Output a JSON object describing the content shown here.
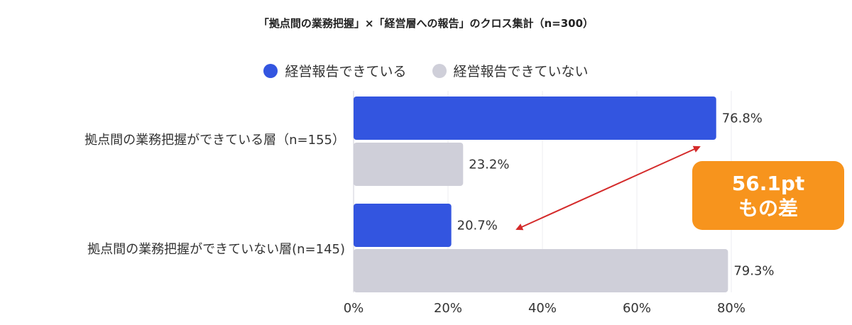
{
  "chart_data": {
    "type": "bar",
    "orientation": "horizontal",
    "title": "「拠点間の業務把握」×「経営層への報告」のクロス集計（n=300）",
    "categories": [
      "拠点間の業務把握ができている層（n=155）",
      "拠点間の業務把握ができていない層(n=145)"
    ],
    "series": [
      {
        "name": "経営報告できている",
        "color": "#3355e0",
        "values": [
          76.8,
          20.7
        ],
        "labels": [
          "76.8%",
          "20.7%"
        ]
      },
      {
        "name": "経営報告できていない",
        "color": "#cfcfd9",
        "values": [
          23.2,
          79.3
        ],
        "labels": [
          "23.2%",
          "79.3%"
        ]
      }
    ],
    "xlim": [
      0,
      80
    ],
    "xticks": [
      "0%",
      "20%",
      "40%",
      "60%",
      "80%"
    ],
    "grid": true,
    "legend_position": "top",
    "annotation": {
      "line1": "56.1pt",
      "line2": "もの差",
      "color": "#f7941d",
      "arrow_color": "#d42a2a"
    }
  }
}
